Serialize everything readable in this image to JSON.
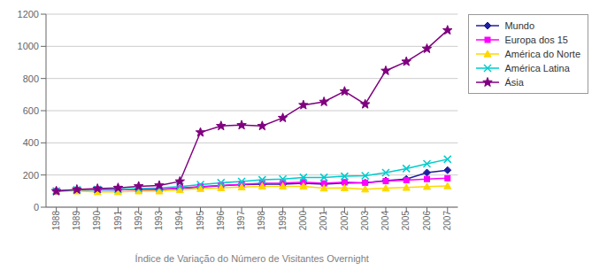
{
  "chart_data": {
    "type": "line",
    "xlabel": "Índice de Variação do Número de Visitantes Overnight",
    "x": [
      1988,
      1989,
      1990,
      1991,
      1992,
      1993,
      1994,
      1995,
      1996,
      1997,
      1998,
      1999,
      2000,
      2001,
      2002,
      2003,
      2004,
      2005,
      2006,
      2007
    ],
    "xlim": [
      1987.5,
      2007.5
    ],
    "xticks": [
      1988,
      1989,
      1990,
      1991,
      1992,
      1993,
      1994,
      1995,
      1996,
      1997,
      1998,
      1999,
      2000,
      2001,
      2002,
      2003,
      2004,
      2005,
      2006,
      2007
    ],
    "ylim": [
      0,
      1200
    ],
    "yticks": [
      0,
      200,
      400,
      600,
      800,
      1000,
      1200
    ],
    "grid": true,
    "legend": "right",
    "series": [
      {
        "name": "Mundo",
        "color": "#1F1FA0",
        "marker": "diamond",
        "values": [
          100,
          105,
          108,
          108,
          112,
          112,
          117,
          125,
          133,
          140,
          143,
          143,
          148,
          143,
          150,
          152,
          165,
          175,
          215,
          230
        ]
      },
      {
        "name": "Europa dos 15",
        "color": "#FF00FF",
        "marker": "square",
        "values": [
          100,
          106,
          110,
          108,
          112,
          110,
          118,
          128,
          135,
          142,
          148,
          150,
          155,
          148,
          155,
          152,
          162,
          168,
          175,
          180
        ]
      },
      {
        "name": "América do Norte",
        "color": "#FFD700",
        "marker": "triangle",
        "values": [
          100,
          100,
          95,
          95,
          100,
          100,
          108,
          115,
          120,
          125,
          130,
          130,
          130,
          118,
          120,
          112,
          118,
          122,
          128,
          132
        ]
      },
      {
        "name": "América Latina",
        "color": "#00CCCC",
        "marker": "x",
        "values": [
          100,
          108,
          110,
          110,
          115,
          120,
          128,
          140,
          152,
          160,
          170,
          175,
          185,
          185,
          192,
          195,
          215,
          240,
          270,
          298
        ]
      },
      {
        "name": "Ásia",
        "color": "#800080",
        "marker": "star",
        "values": [
          100,
          110,
          115,
          120,
          130,
          135,
          160,
          465,
          505,
          510,
          505,
          555,
          635,
          655,
          720,
          640,
          848,
          905,
          985,
          1100
        ]
      }
    ]
  }
}
